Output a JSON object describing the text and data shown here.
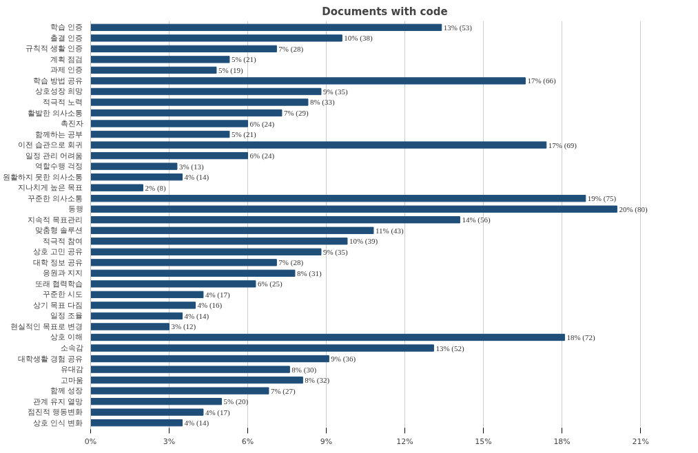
{
  "chart_data": {
    "type": "bar",
    "orientation": "horizontal",
    "title": "Documents with code",
    "color": "#1f4e79",
    "categories": [
      "학습 인증",
      "출결 인증",
      "규칙적 생활 인증",
      "계획 점검",
      "과제 인증",
      "학습 방법 공유",
      "상호성장 희망",
      "적극적 노력",
      "활발한 의사소통",
      "촉진자",
      "함께하는 공부",
      "이전 습관으로 회귀",
      "일정 관리 어려움",
      "역할수행 걱정",
      "원활하지 못한 의사소통",
      "지나치게 높은 목표",
      "꾸준한 의사소통",
      "동행",
      "지속적 목표관리",
      "맞춤형 솔루션",
      "적극적 참여",
      "상호 고민 공유",
      "대학 정보 공유",
      "응원과 지지",
      "또래 협력학습",
      "꾸준한 시도",
      "상기 목표 다짐",
      "일정 조율",
      "현실적인 목표로 변경",
      "상호 이해",
      "소속감",
      "대학생활 경험 공유",
      "유대감",
      "고마움",
      "함께 성장",
      "관계 유지 열망",
      "점진적 행동변화",
      "상호 인식 변화"
    ],
    "values": [
      13.4,
      9.6,
      7.1,
      5.3,
      4.8,
      16.6,
      8.8,
      8.3,
      7.3,
      6.0,
      5.3,
      17.4,
      6.0,
      3.3,
      3.5,
      2.0,
      18.9,
      20.1,
      14.1,
      10.8,
      9.8,
      8.8,
      7.1,
      7.8,
      6.3,
      4.3,
      4.0,
      3.5,
      3.0,
      18.1,
      13.1,
      9.1,
      7.6,
      8.1,
      6.8,
      5.0,
      4.3,
      3.5
    ],
    "value_labels": [
      "13% (53)",
      "10% (38)",
      "7% (28)",
      "5% (21)",
      "5% (19)",
      "17% (66)",
      "9% (35)",
      "8% (33)",
      "7% (29)",
      "6% (24)",
      "5% (21)",
      "17% (69)",
      "6% (24)",
      "3% (13)",
      "4% (14)",
      "2% (8)",
      "19% (75)",
      "20% (80)",
      "14% (56)",
      "11% (43)",
      "10% (39)",
      "9% (35)",
      "7% (28)",
      "8% (31)",
      "6% (25)",
      "4% (17)",
      "4% (16)",
      "4% (14)",
      "3% (12)",
      "18% (72)",
      "13% (52)",
      "9% (36)",
      "8% (30)",
      "8% (32)",
      "7% (27)",
      "5% (20)",
      "4% (17)",
      "4% (14)"
    ],
    "xlim": [
      0,
      21
    ],
    "xticks": [
      {
        "value": 0,
        "label": "0%"
      },
      {
        "value": 3,
        "label": "3%"
      },
      {
        "value": 6,
        "label": "6%"
      },
      {
        "value": 9,
        "label": "9%"
      },
      {
        "value": 12,
        "label": "12%"
      },
      {
        "value": 15,
        "label": "15%"
      },
      {
        "value": 18,
        "label": "18%"
      },
      {
        "value": 21,
        "label": "21%"
      }
    ],
    "grid": "x"
  }
}
